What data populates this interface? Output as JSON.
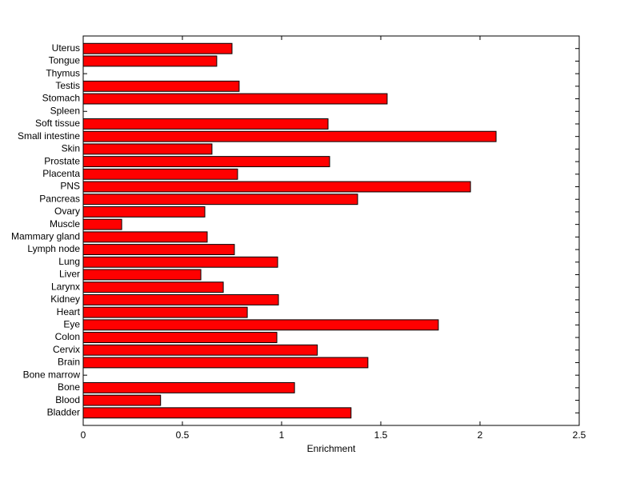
{
  "chart_data": {
    "type": "barh",
    "xlabel": "Enrichment",
    "categories": [
      "Bladder",
      "Blood",
      "Bone",
      "Bone marrow",
      "Brain",
      "Cervix",
      "Colon",
      "Eye",
      "Heart",
      "Kidney",
      "Larynx",
      "Liver",
      "Lung",
      "Lymph node",
      "Mammary gland",
      "Muscle",
      "Ovary",
      "Pancreas",
      "PNS",
      "Placenta",
      "Prostate",
      "Skin",
      "Small intestine",
      "Soft tissue",
      "Spleen",
      "Stomach",
      "Testis",
      "Thymus",
      "Tongue",
      "Uterus"
    ],
    "values": [
      1.35,
      0.39,
      1.065,
      0,
      1.435,
      1.18,
      0.976,
      1.79,
      0.827,
      0.984,
      0.706,
      0.593,
      0.98,
      0.762,
      0.625,
      0.194,
      0.613,
      1.383,
      1.952,
      0.778,
      1.242,
      0.649,
      2.081,
      1.234,
      0,
      1.532,
      0.786,
      0,
      0.673,
      0.75
    ],
    "color": "#ff0000",
    "xlim": [
      0,
      2.5
    ],
    "xticks": [
      0,
      0.5,
      1,
      1.5,
      2,
      2.5
    ]
  }
}
